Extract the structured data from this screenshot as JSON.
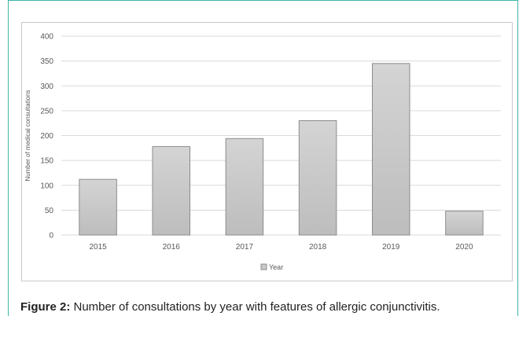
{
  "caption": {
    "label": "Figure 2:",
    "text": " Number of consultations by year with features of allergic conjunctivitis."
  },
  "chart_data": {
    "type": "bar",
    "categories": [
      "2015",
      "2016",
      "2017",
      "2018",
      "2019",
      "2020"
    ],
    "values": [
      112,
      178,
      194,
      230,
      345,
      48
    ],
    "series": [
      {
        "name": "Year",
        "values": [
          112,
          178,
          194,
          230,
          345,
          48
        ]
      }
    ],
    "ylabel": "Number of medical consultations",
    "xlabel": "",
    "ylim": [
      0,
      400
    ],
    "yticks": [
      "0",
      "50",
      "100",
      "150",
      "200",
      "250",
      "300",
      "350",
      "400"
    ],
    "grid": true,
    "legend_position": "bottom",
    "bar_color": "#c8c8c8",
    "bar_edge_color": "#8c8c8c",
    "grid_color": "#d9d9d9"
  }
}
